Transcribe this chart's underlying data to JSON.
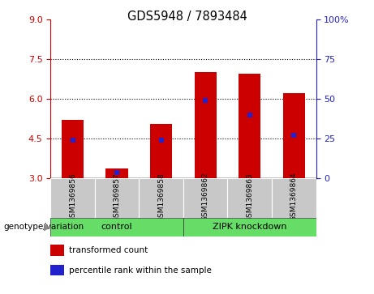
{
  "title": "GDS5948 / 7893484",
  "samples": [
    "GSM1369856",
    "GSM1369857",
    "GSM1369858",
    "GSM1369862",
    "GSM1369863",
    "GSM1369864"
  ],
  "bar_bottom": 3.0,
  "red_values": [
    5.2,
    3.35,
    5.05,
    7.0,
    6.95,
    6.2
  ],
  "blue_values": [
    4.42,
    3.2,
    4.42,
    5.93,
    5.38,
    4.62
  ],
  "ylim_left": [
    3.0,
    9.0
  ],
  "ylim_right": [
    0,
    100
  ],
  "yticks_left": [
    3,
    4.5,
    6,
    7.5,
    9
  ],
  "yticks_right": [
    0,
    25,
    50,
    75,
    100
  ],
  "grid_values": [
    4.5,
    6.0,
    7.5
  ],
  "red_color": "#CC0000",
  "blue_color": "#2222CC",
  "bar_width": 0.5,
  "group_label": "genotype/variation",
  "legend_items": [
    "transformed count",
    "percentile rank within the sample"
  ],
  "left_axis_color": "#CC0000",
  "right_axis_color": "#2222CC",
  "tick_bg_color": "#C8C8C8",
  "group_bg_color": "#66DD66",
  "group_border_color": "#333333",
  "control_label": "control",
  "zipk_label": "ZIPK knockdown"
}
